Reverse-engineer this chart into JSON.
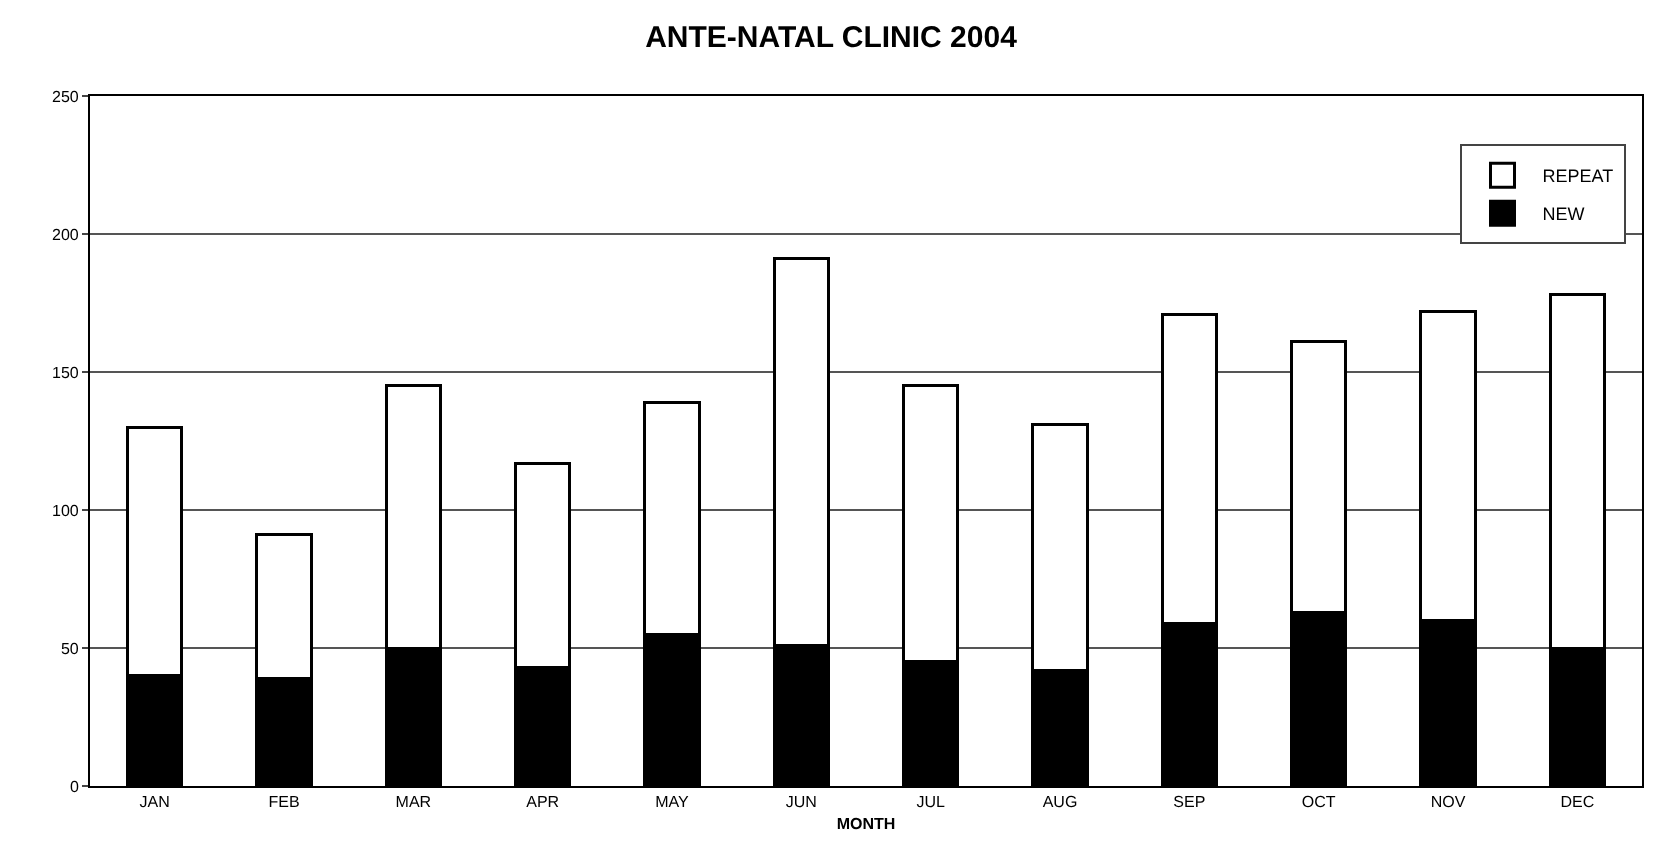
{
  "chart_data": {
    "type": "bar",
    "title": "ANTE-NATAL CLINIC 2004",
    "xlabel": "MONTH",
    "categories": [
      "JAN",
      "FEB",
      "MAR",
      "APR",
      "MAY",
      "JUN",
      "JUL",
      "AUG",
      "SEP",
      "OCT",
      "NOV",
      "DEC"
    ],
    "series": [
      {
        "name": "NEW",
        "color": "#000000",
        "values": [
          40,
          39,
          50,
          43,
          55,
          51,
          45,
          42,
          59,
          63,
          60,
          50
        ]
      },
      {
        "name": "REPEAT",
        "color": "#ffffff",
        "values": [
          90,
          52,
          95,
          74,
          84,
          140,
          100,
          89,
          112,
          98,
          112,
          128
        ]
      }
    ],
    "stacked": true,
    "ylim": [
      0,
      250
    ],
    "yticks": [
      0,
      50,
      100,
      150,
      200,
      250
    ],
    "grid": "y",
    "legend": "top right"
  }
}
